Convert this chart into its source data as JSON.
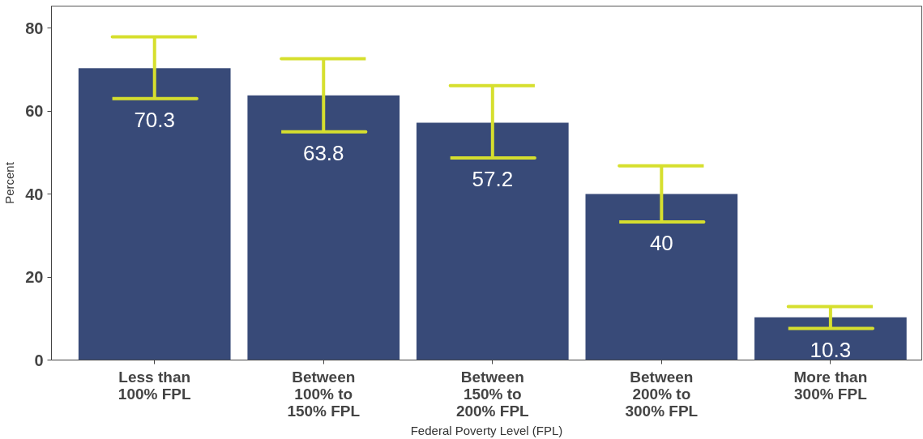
{
  "chart_data": {
    "type": "bar",
    "xlabel": "Federal Poverty Level (FPL)",
    "ylabel": "Percent",
    "categories": [
      "Less than\n100% FPL",
      "Between\n100% to\n150% FPL",
      "Between\n150% to\n200% FPL",
      "Between\n200% to\n300% FPL",
      "More than\n300% FPL"
    ],
    "values": [
      70.3,
      63.8,
      57.2,
      40,
      10.3
    ],
    "color": "#384a78",
    "errors": [
      [
        63.0,
        77.9
      ],
      [
        55.0,
        72.6
      ],
      [
        48.7,
        66.1
      ],
      [
        33.3,
        46.8
      ],
      [
        7.6,
        12.9
      ]
    ],
    "ylim": [
      0,
      85.3
    ],
    "yticks": [
      0,
      20,
      40,
      60,
      80
    ],
    "data_labels": true,
    "grid": false
  }
}
